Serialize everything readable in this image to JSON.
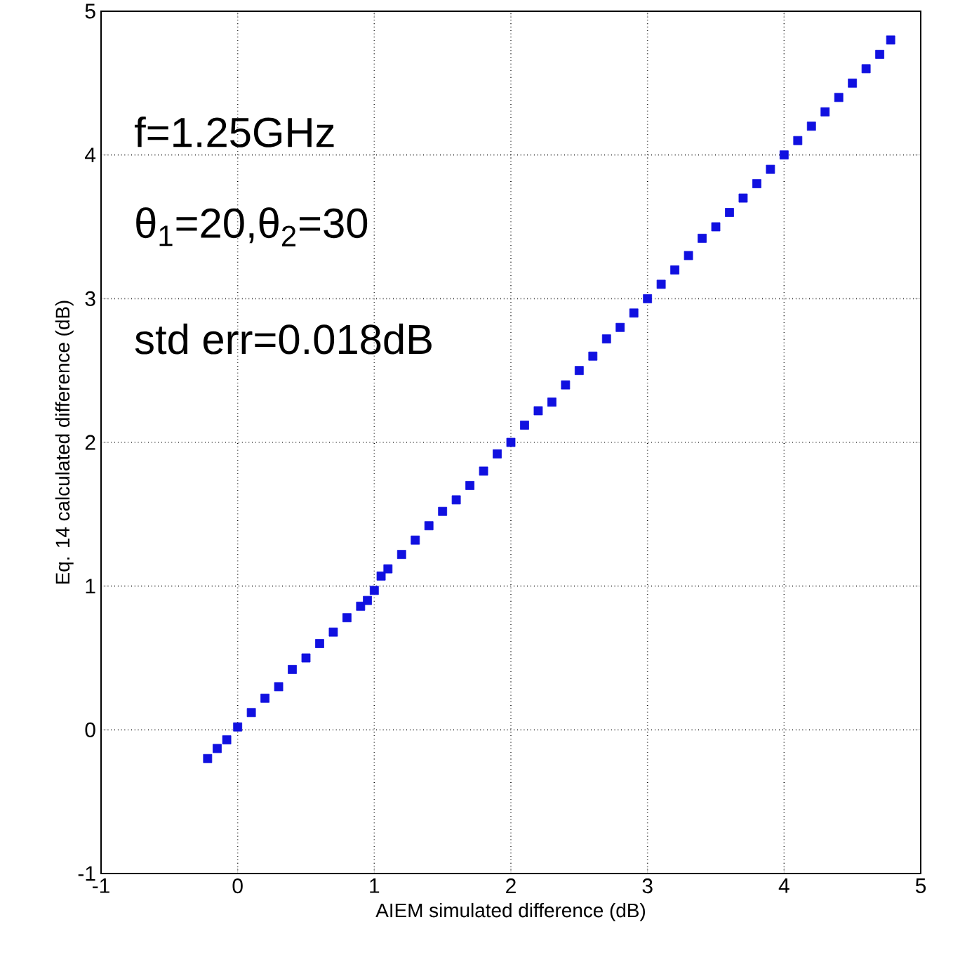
{
  "chart_data": {
    "type": "scatter",
    "xlabel": "AIEM simulated difference (dB)",
    "ylabel": "Eq. 14 calculated difference (dB)",
    "annotations": [
      "f=1.25GHz",
      "θ$_{1}$=20,θ$_{2}$=30",
      "std err=0.018dB"
    ],
    "xlim": [
      -1,
      5
    ],
    "ylim": [
      -1,
      5
    ],
    "xticks": [
      -1,
      0,
      1,
      2,
      3,
      4,
      5
    ],
    "yticks": [
      -1,
      0,
      1,
      2,
      3,
      4,
      5
    ],
    "grid": true,
    "marker": "square",
    "series": [
      {
        "color": "#1010e0",
        "x": [
          -0.22,
          -0.15,
          -0.08,
          0.0,
          0.1,
          0.2,
          0.3,
          0.4,
          0.5,
          0.6,
          0.7,
          0.8,
          0.9,
          0.95,
          1.0,
          1.05,
          1.1,
          1.2,
          1.3,
          1.4,
          1.5,
          1.6,
          1.7,
          1.8,
          1.9,
          2.0,
          2.1,
          2.2,
          2.3,
          2.4,
          2.5,
          2.6,
          2.7,
          2.8,
          2.9,
          3.0,
          3.1,
          3.2,
          3.3,
          3.4,
          3.5,
          3.6,
          3.7,
          3.8,
          3.9,
          4.0,
          4.1,
          4.2,
          4.3,
          4.4,
          4.5,
          4.6,
          4.7,
          4.78
        ],
        "values": [
          -0.2,
          -0.13,
          -0.07,
          0.02,
          0.12,
          0.22,
          0.3,
          0.42,
          0.5,
          0.6,
          0.68,
          0.78,
          0.86,
          0.9,
          0.97,
          1.07,
          1.12,
          1.22,
          1.32,
          1.42,
          1.52,
          1.6,
          1.7,
          1.8,
          1.92,
          2.0,
          2.12,
          2.22,
          2.28,
          2.4,
          2.5,
          2.6,
          2.72,
          2.8,
          2.9,
          3.0,
          3.1,
          3.2,
          3.3,
          3.42,
          3.5,
          3.6,
          3.7,
          3.8,
          3.9,
          4.0,
          4.1,
          4.2,
          4.3,
          4.4,
          4.5,
          4.6,
          4.7,
          4.8
        ]
      }
    ]
  }
}
